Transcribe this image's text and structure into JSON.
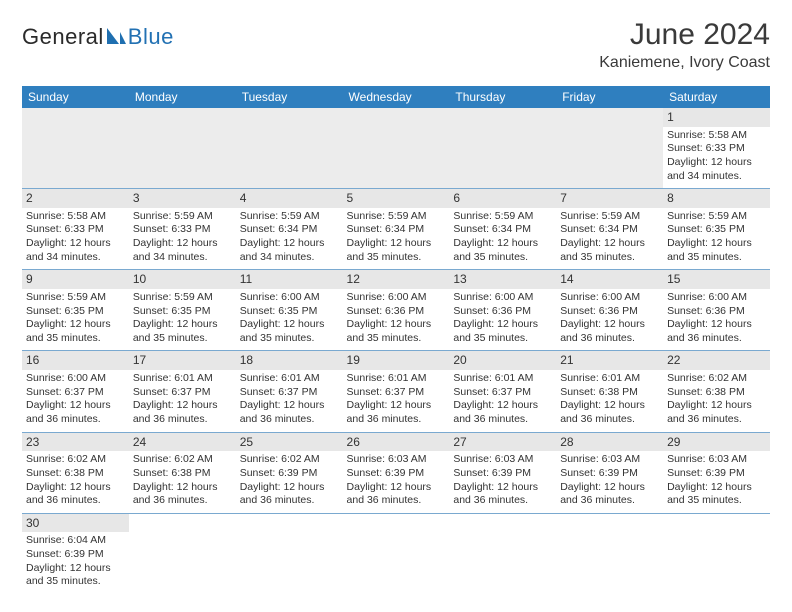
{
  "brand": {
    "part1": "General",
    "part2": "Blue",
    "icon_color": "#1f6fb0"
  },
  "header": {
    "month_title": "June 2024",
    "location": "Kaniemene, Ivory Coast"
  },
  "colors": {
    "header_bg": "#2f7fbf",
    "header_fg": "#ffffff",
    "cell_border": "#7aa9d0",
    "daynum_bg": "#e7e7e7",
    "leading_bg": "#ececec"
  },
  "weekdays": [
    "Sunday",
    "Monday",
    "Tuesday",
    "Wednesday",
    "Thursday",
    "Friday",
    "Saturday"
  ],
  "leading_blanks": 6,
  "days": [
    {
      "n": "1",
      "sunrise": "Sunrise: 5:58 AM",
      "sunset": "Sunset: 6:33 PM",
      "day1": "Daylight: 12 hours",
      "day2": "and 34 minutes."
    },
    {
      "n": "2",
      "sunrise": "Sunrise: 5:58 AM",
      "sunset": "Sunset: 6:33 PM",
      "day1": "Daylight: 12 hours",
      "day2": "and 34 minutes."
    },
    {
      "n": "3",
      "sunrise": "Sunrise: 5:59 AM",
      "sunset": "Sunset: 6:33 PM",
      "day1": "Daylight: 12 hours",
      "day2": "and 34 minutes."
    },
    {
      "n": "4",
      "sunrise": "Sunrise: 5:59 AM",
      "sunset": "Sunset: 6:34 PM",
      "day1": "Daylight: 12 hours",
      "day2": "and 34 minutes."
    },
    {
      "n": "5",
      "sunrise": "Sunrise: 5:59 AM",
      "sunset": "Sunset: 6:34 PM",
      "day1": "Daylight: 12 hours",
      "day2": "and 35 minutes."
    },
    {
      "n": "6",
      "sunrise": "Sunrise: 5:59 AM",
      "sunset": "Sunset: 6:34 PM",
      "day1": "Daylight: 12 hours",
      "day2": "and 35 minutes."
    },
    {
      "n": "7",
      "sunrise": "Sunrise: 5:59 AM",
      "sunset": "Sunset: 6:34 PM",
      "day1": "Daylight: 12 hours",
      "day2": "and 35 minutes."
    },
    {
      "n": "8",
      "sunrise": "Sunrise: 5:59 AM",
      "sunset": "Sunset: 6:35 PM",
      "day1": "Daylight: 12 hours",
      "day2": "and 35 minutes."
    },
    {
      "n": "9",
      "sunrise": "Sunrise: 5:59 AM",
      "sunset": "Sunset: 6:35 PM",
      "day1": "Daylight: 12 hours",
      "day2": "and 35 minutes."
    },
    {
      "n": "10",
      "sunrise": "Sunrise: 5:59 AM",
      "sunset": "Sunset: 6:35 PM",
      "day1": "Daylight: 12 hours",
      "day2": "and 35 minutes."
    },
    {
      "n": "11",
      "sunrise": "Sunrise: 6:00 AM",
      "sunset": "Sunset: 6:35 PM",
      "day1": "Daylight: 12 hours",
      "day2": "and 35 minutes."
    },
    {
      "n": "12",
      "sunrise": "Sunrise: 6:00 AM",
      "sunset": "Sunset: 6:36 PM",
      "day1": "Daylight: 12 hours",
      "day2": "and 35 minutes."
    },
    {
      "n": "13",
      "sunrise": "Sunrise: 6:00 AM",
      "sunset": "Sunset: 6:36 PM",
      "day1": "Daylight: 12 hours",
      "day2": "and 35 minutes."
    },
    {
      "n": "14",
      "sunrise": "Sunrise: 6:00 AM",
      "sunset": "Sunset: 6:36 PM",
      "day1": "Daylight: 12 hours",
      "day2": "and 36 minutes."
    },
    {
      "n": "15",
      "sunrise": "Sunrise: 6:00 AM",
      "sunset": "Sunset: 6:36 PM",
      "day1": "Daylight: 12 hours",
      "day2": "and 36 minutes."
    },
    {
      "n": "16",
      "sunrise": "Sunrise: 6:00 AM",
      "sunset": "Sunset: 6:37 PM",
      "day1": "Daylight: 12 hours",
      "day2": "and 36 minutes."
    },
    {
      "n": "17",
      "sunrise": "Sunrise: 6:01 AM",
      "sunset": "Sunset: 6:37 PM",
      "day1": "Daylight: 12 hours",
      "day2": "and 36 minutes."
    },
    {
      "n": "18",
      "sunrise": "Sunrise: 6:01 AM",
      "sunset": "Sunset: 6:37 PM",
      "day1": "Daylight: 12 hours",
      "day2": "and 36 minutes."
    },
    {
      "n": "19",
      "sunrise": "Sunrise: 6:01 AM",
      "sunset": "Sunset: 6:37 PM",
      "day1": "Daylight: 12 hours",
      "day2": "and 36 minutes."
    },
    {
      "n": "20",
      "sunrise": "Sunrise: 6:01 AM",
      "sunset": "Sunset: 6:37 PM",
      "day1": "Daylight: 12 hours",
      "day2": "and 36 minutes."
    },
    {
      "n": "21",
      "sunrise": "Sunrise: 6:01 AM",
      "sunset": "Sunset: 6:38 PM",
      "day1": "Daylight: 12 hours",
      "day2": "and 36 minutes."
    },
    {
      "n": "22",
      "sunrise": "Sunrise: 6:02 AM",
      "sunset": "Sunset: 6:38 PM",
      "day1": "Daylight: 12 hours",
      "day2": "and 36 minutes."
    },
    {
      "n": "23",
      "sunrise": "Sunrise: 6:02 AM",
      "sunset": "Sunset: 6:38 PM",
      "day1": "Daylight: 12 hours",
      "day2": "and 36 minutes."
    },
    {
      "n": "24",
      "sunrise": "Sunrise: 6:02 AM",
      "sunset": "Sunset: 6:38 PM",
      "day1": "Daylight: 12 hours",
      "day2": "and 36 minutes."
    },
    {
      "n": "25",
      "sunrise": "Sunrise: 6:02 AM",
      "sunset": "Sunset: 6:39 PM",
      "day1": "Daylight: 12 hours",
      "day2": "and 36 minutes."
    },
    {
      "n": "26",
      "sunrise": "Sunrise: 6:03 AM",
      "sunset": "Sunset: 6:39 PM",
      "day1": "Daylight: 12 hours",
      "day2": "and 36 minutes."
    },
    {
      "n": "27",
      "sunrise": "Sunrise: 6:03 AM",
      "sunset": "Sunset: 6:39 PM",
      "day1": "Daylight: 12 hours",
      "day2": "and 36 minutes."
    },
    {
      "n": "28",
      "sunrise": "Sunrise: 6:03 AM",
      "sunset": "Sunset: 6:39 PM",
      "day1": "Daylight: 12 hours",
      "day2": "and 36 minutes."
    },
    {
      "n": "29",
      "sunrise": "Sunrise: 6:03 AM",
      "sunset": "Sunset: 6:39 PM",
      "day1": "Daylight: 12 hours",
      "day2": "and 35 minutes."
    },
    {
      "n": "30",
      "sunrise": "Sunrise: 6:04 AM",
      "sunset": "Sunset: 6:39 PM",
      "day1": "Daylight: 12 hours",
      "day2": "and 35 minutes."
    }
  ]
}
